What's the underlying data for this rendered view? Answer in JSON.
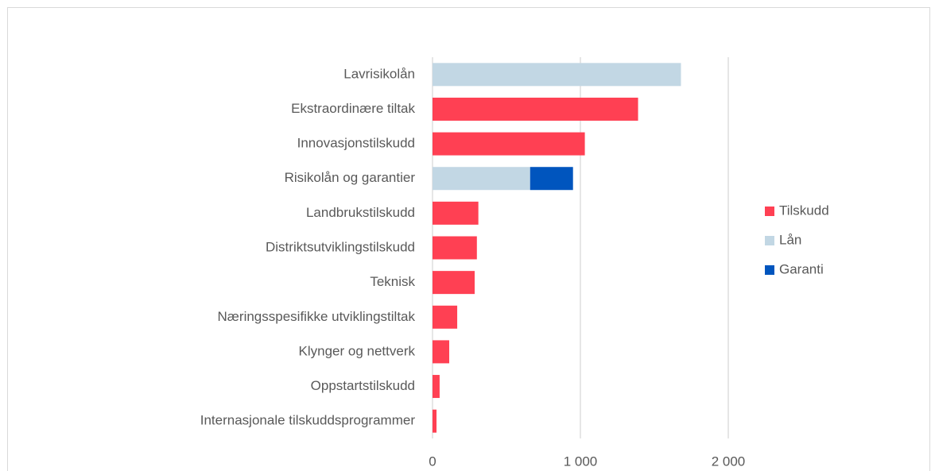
{
  "chart_data": {
    "type": "stacked_barh",
    "categories": [
      "Lavrisikolån",
      "Ekstraordinære tiltak",
      "Innovasjonstilskudd",
      "Risikolån og garantier",
      "Landbrukstilskudd",
      "Distriktsutviklingstilskudd",
      "Teknisk",
      "Næringsspesifikke utviklingstiltak",
      "Klynger og nettverk",
      "Oppstartstilskudd",
      "Internasjonale tilskuddsprogrammer"
    ],
    "series": [
      {
        "name": "Tilskudd",
        "color": "#ff4053",
        "values": [
          null,
          1390,
          1030,
          null,
          310,
          300,
          285,
          167,
          113,
          48,
          27
        ]
      },
      {
        "name": "Lån",
        "color": "#c2d7e4",
        "values": [
          1680,
          null,
          null,
          660,
          null,
          null,
          null,
          null,
          null,
          null,
          null
        ]
      },
      {
        "name": "Garanti",
        "color": "#0055be",
        "values": [
          null,
          null,
          null,
          290,
          null,
          null,
          null,
          null,
          null,
          null,
          null
        ]
      }
    ],
    "xlim": [
      0,
      2000
    ],
    "xticks": [
      0,
      {
        "value": 1000,
        "label": "1 000"
      },
      {
        "value": 2000,
        "label": "2 000"
      }
    ],
    "grid": true,
    "legend": "right"
  }
}
